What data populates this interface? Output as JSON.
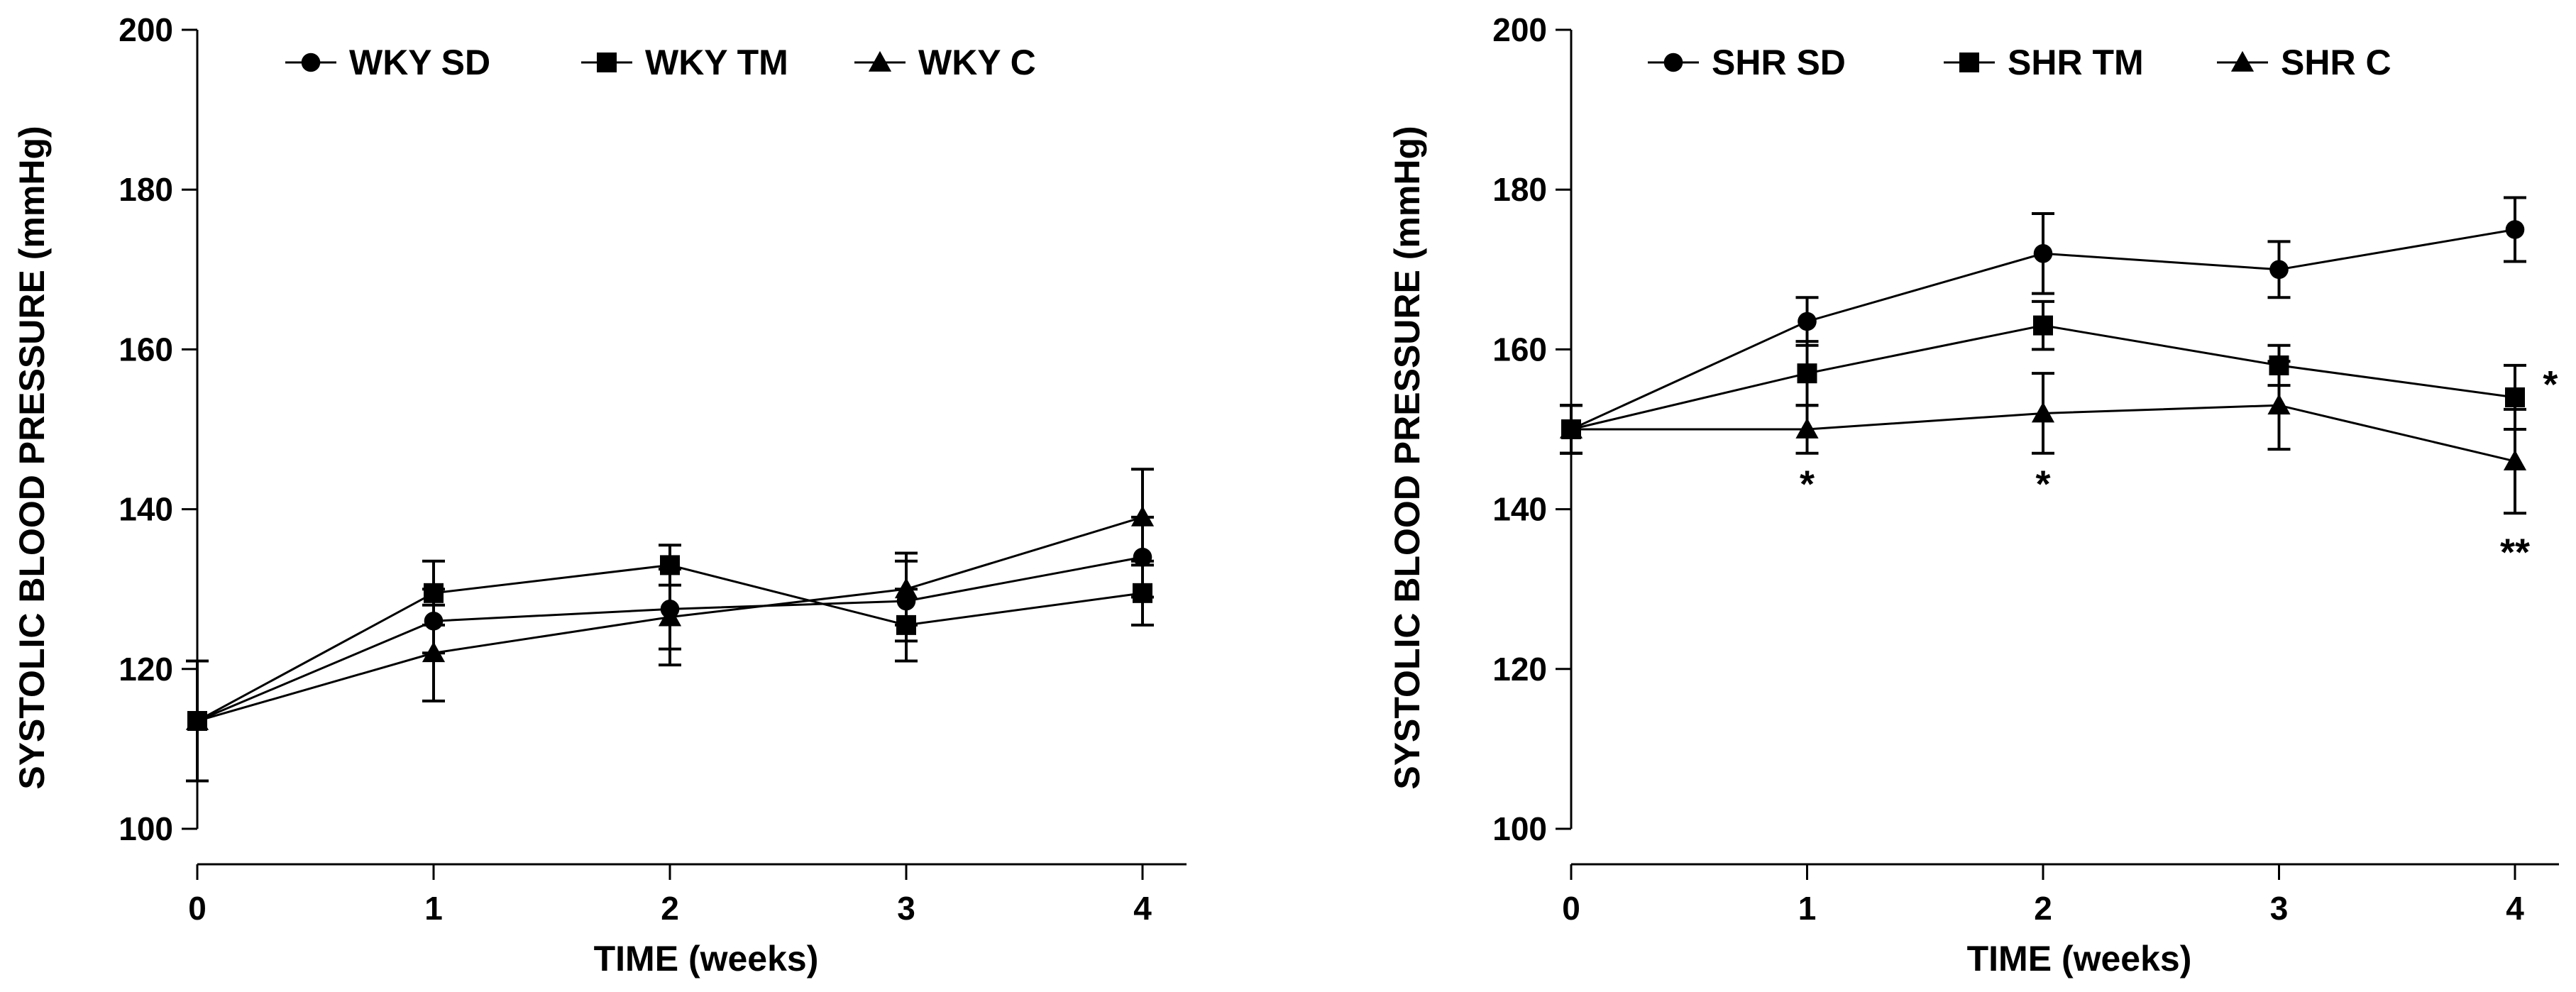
{
  "chart_data": [
    {
      "type": "line",
      "title": "",
      "xlabel": "TIME (weeks)",
      "ylabel": "SYSTOLIC BLOOD PRESSURE (mmHg)",
      "x": [
        0,
        1,
        2,
        3,
        4
      ],
      "x_ticks": [
        "0",
        "1",
        "2",
        "3",
        "4"
      ],
      "xlim": [
        0,
        4
      ],
      "ylim": [
        100,
        200
      ],
      "y_ticks": [
        "100",
        "120",
        "140",
        "160",
        "180",
        "200"
      ],
      "grid": false,
      "legend_position": "top",
      "series": [
        {
          "name": "WKY SD",
          "marker": "circle",
          "values": [
            113.5,
            126.0,
            127.5,
            128.5,
            134.0
          ],
          "errors": [
            7.5,
            4.0,
            5.0,
            5.0,
            5.0
          ]
        },
        {
          "name": "WKY TM",
          "marker": "square",
          "values": [
            113.5,
            129.5,
            133.0,
            125.5,
            129.5
          ],
          "errors": [
            7.5,
            4.0,
            2.5,
            4.5,
            4.0
          ]
        },
        {
          "name": "WKY C",
          "marker": "triangle",
          "values": [
            113.5,
            122.0,
            126.5,
            130.0,
            139.0
          ],
          "errors": [
            7.5,
            6.0,
            6.0,
            4.5,
            6.0
          ]
        }
      ],
      "annotations": []
    },
    {
      "type": "line",
      "title": "",
      "xlabel": "TIME (weeks)",
      "ylabel": "SYSTOLIC BLOOD PRESSURE (mmHg)",
      "x": [
        0,
        1,
        2,
        3,
        4
      ],
      "x_ticks": [
        "0",
        "1",
        "2",
        "3",
        "4"
      ],
      "xlim": [
        0,
        4
      ],
      "ylim": [
        100,
        200
      ],
      "y_ticks": [
        "100",
        "120",
        "140",
        "160",
        "180",
        "200"
      ],
      "grid": false,
      "legend_position": "top",
      "series": [
        {
          "name": "SHR SD",
          "marker": "circle",
          "values": [
            150.0,
            163.5,
            172.0,
            170.0,
            175.0
          ],
          "errors": [
            3.0,
            3.0,
            5.0,
            3.5,
            4.0
          ]
        },
        {
          "name": "SHR TM",
          "marker": "square",
          "values": [
            150.0,
            157.0,
            163.0,
            158.0,
            154.0
          ],
          "errors": [
            3.0,
            4.0,
            3.0,
            2.5,
            4.0
          ]
        },
        {
          "name": "SHR C",
          "marker": "triangle",
          "values": [
            150.0,
            150.0,
            152.0,
            153.0,
            146.0
          ],
          "errors": [
            3.0,
            3.0,
            5.0,
            5.5,
            6.5
          ]
        }
      ],
      "annotations": [
        {
          "text": "*",
          "x": 1,
          "y": 141.5
        },
        {
          "text": "*",
          "x": 2,
          "y": 141.5
        },
        {
          "text": "*",
          "x": 4.15,
          "y": 154
        },
        {
          "text": "**",
          "x": 4,
          "y": 133
        }
      ]
    }
  ]
}
